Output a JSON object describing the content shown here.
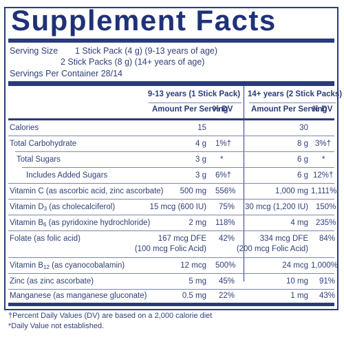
{
  "title": "Supplement Facts",
  "serving": {
    "label": "Serving Size",
    "line1": "1 Stick Pack (4 g) (9-13 years of age)",
    "line2": "2 Stick Packs (8 g) (14+ years of age)",
    "servings_per_container": "Servings Per Container 28/14"
  },
  "headers": {
    "group1": "9-13 years (1 Stick Pack)",
    "group2": "14+ years (2 Stick Packs)",
    "amount": "Amount Per Serving",
    "dv": "% DV"
  },
  "rows": [
    {
      "name": "Calories",
      "a1": "15",
      "d1": "",
      "a2": "30",
      "d2": ""
    },
    {
      "name": "Total Carbohydrate",
      "a1": "4 g",
      "d1": "1%†",
      "a2": "8 g",
      "d2": "3%†"
    },
    {
      "name": "Total Sugars",
      "a1": "3 g",
      "d1": "*",
      "a2": "6 g",
      "d2": "*"
    },
    {
      "name": "Includes Added Sugars",
      "a1": "3 g",
      "d1": "6%†",
      "a2": "6 g",
      "d2": "12%†"
    },
    {
      "name": "Vitamin C (as ascorbic acid, zinc ascorbate)",
      "a1": "500 mg",
      "d1": "556%",
      "a2": "1,000 mg",
      "d2": "1,111%"
    },
    {
      "name_pre": "Vitamin D",
      "name_sub": "3",
      "name_post": " (as cholecalciferol)",
      "a1": "15 mcg (600 IU)",
      "d1": "75%",
      "a2": "30 mcg (1,200 IU)",
      "d2": "150%"
    },
    {
      "name_pre": "Vitamin B",
      "name_sub": "6",
      "name_post": " (as pyridoxine hydrochloride)",
      "a1": "2 mg",
      "d1": "118%",
      "a2": "4 mg",
      "d2": "235%"
    },
    {
      "name": "Folate (as folic acid)",
      "a1": "167 mcg DFE",
      "a1b": "(100 mcg Folic Acid)",
      "d1": "42%",
      "a2": "334 mcg DFE",
      "a2b": "(200 mcg Folic Acid)",
      "d2": "84%"
    },
    {
      "name_pre": "Vitamin B",
      "name_sub": "12",
      "name_post": " (as cyanocobalamin)",
      "a1": "12 mcg",
      "d1": "500%",
      "a2": "24 mcg",
      "d2": "1,000%"
    },
    {
      "name": "Zinc (as zinc ascorbate)",
      "a1": "5 mg",
      "d1": "45%",
      "a2": "10 mg",
      "d2": "91%"
    },
    {
      "name": "Manganese (as manganese gluconate)",
      "a1": "0.5 mg",
      "d1": "22%",
      "a2": "1 mg",
      "d2": "43%"
    }
  ],
  "footnotes": {
    "line1": "†Percent Daily Values (DV) are based on a 2,000 calorie diet",
    "line2": "*Daily Value not established."
  },
  "colors": {
    "ink": "#2a3b7a",
    "text": "#2e3f78"
  }
}
